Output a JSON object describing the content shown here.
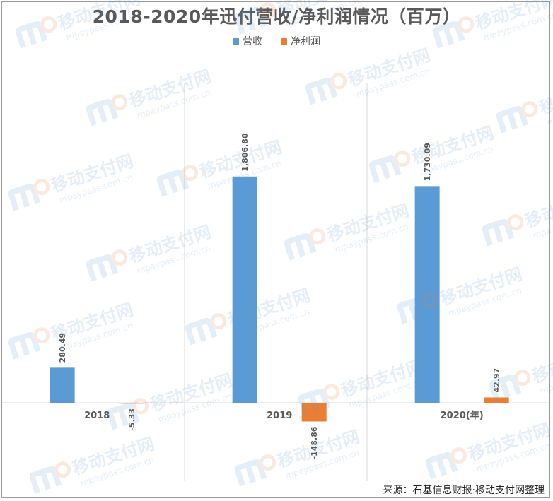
{
  "chart_data": {
    "type": "bar",
    "title": "2018-2020年迅付营收/净利润情况（百万）",
    "categories": [
      "2018",
      "2019",
      "2020(年)"
    ],
    "series": [
      {
        "name": "营收",
        "values": [
          280.49,
          1806.8,
          1730.09
        ],
        "labels": [
          "280.49",
          "1,806.80",
          "1,730.09"
        ],
        "color": "#5b9bd5"
      },
      {
        "name": "净利润",
        "values": [
          -5.33,
          -148.86,
          42.97
        ],
        "labels": [
          "-5.33",
          "-148.86",
          "42.97"
        ],
        "color": "#ed7d31"
      }
    ],
    "ylim": [
      -620,
      2550
    ],
    "grid": false,
    "legend_position": "top"
  },
  "source_text": "来源：石基信息财报·移动支付网整理",
  "watermark": {
    "brand": "移动支付网",
    "url": "mpaypass.com.cn"
  }
}
